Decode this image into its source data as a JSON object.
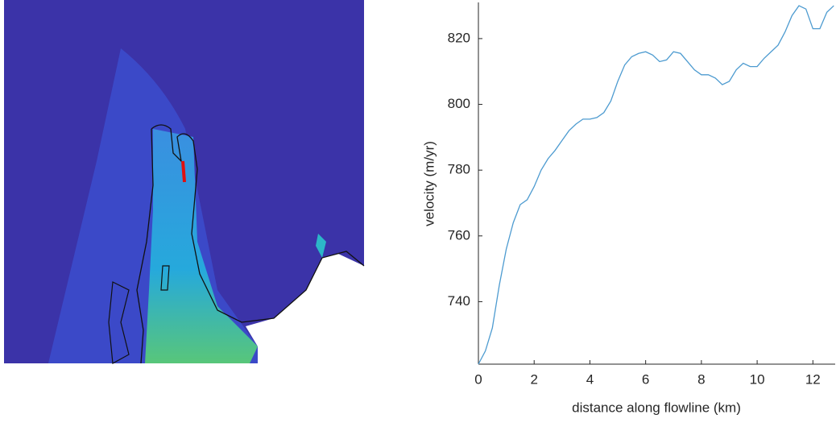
{
  "chart_data": {
    "type": "line",
    "xlabel": "distance along flowline (km)",
    "ylabel": "velocity (m/yr)",
    "x": [
      0,
      0.25,
      0.5,
      0.75,
      1,
      1.25,
      1.5,
      1.75,
      2,
      2.25,
      2.5,
      2.75,
      3,
      3.25,
      3.5,
      3.75,
      4,
      4.25,
      4.5,
      4.75,
      5,
      5.25,
      5.5,
      5.75,
      6,
      6.25,
      6.5,
      6.75,
      7,
      7.25,
      7.5,
      7.75,
      8,
      8.25,
      8.5,
      8.75,
      9,
      9.25,
      9.5,
      9.75,
      10,
      10.25,
      10.5,
      10.75,
      11,
      11.25,
      11.5,
      11.75,
      12,
      12.25,
      12.5,
      12.75
    ],
    "series": [
      {
        "color": "#4d9bd0",
        "values": [
          721,
          725,
          732,
          745,
          756,
          764,
          769.5,
          771,
          775,
          780,
          783.5,
          786,
          789,
          792,
          794,
          795.5,
          795.5,
          796,
          797.5,
          801,
          807,
          812,
          814.5,
          815.5,
          816,
          815,
          813,
          813.5,
          816,
          815.5,
          813,
          810.5,
          809,
          809,
          808,
          806,
          807,
          810.5,
          812.5,
          811.5,
          811.5,
          814,
          816,
          818,
          822,
          827,
          830,
          829,
          823,
          823,
          828,
          830
        ]
      }
    ],
    "xlim": [
      0,
      12.8
    ],
    "xticks": [
      0,
      2,
      4,
      6,
      8,
      10,
      12
    ],
    "ylim": [
      721,
      831
    ],
    "yticks": [
      740,
      760,
      780,
      800,
      820
    ]
  }
}
